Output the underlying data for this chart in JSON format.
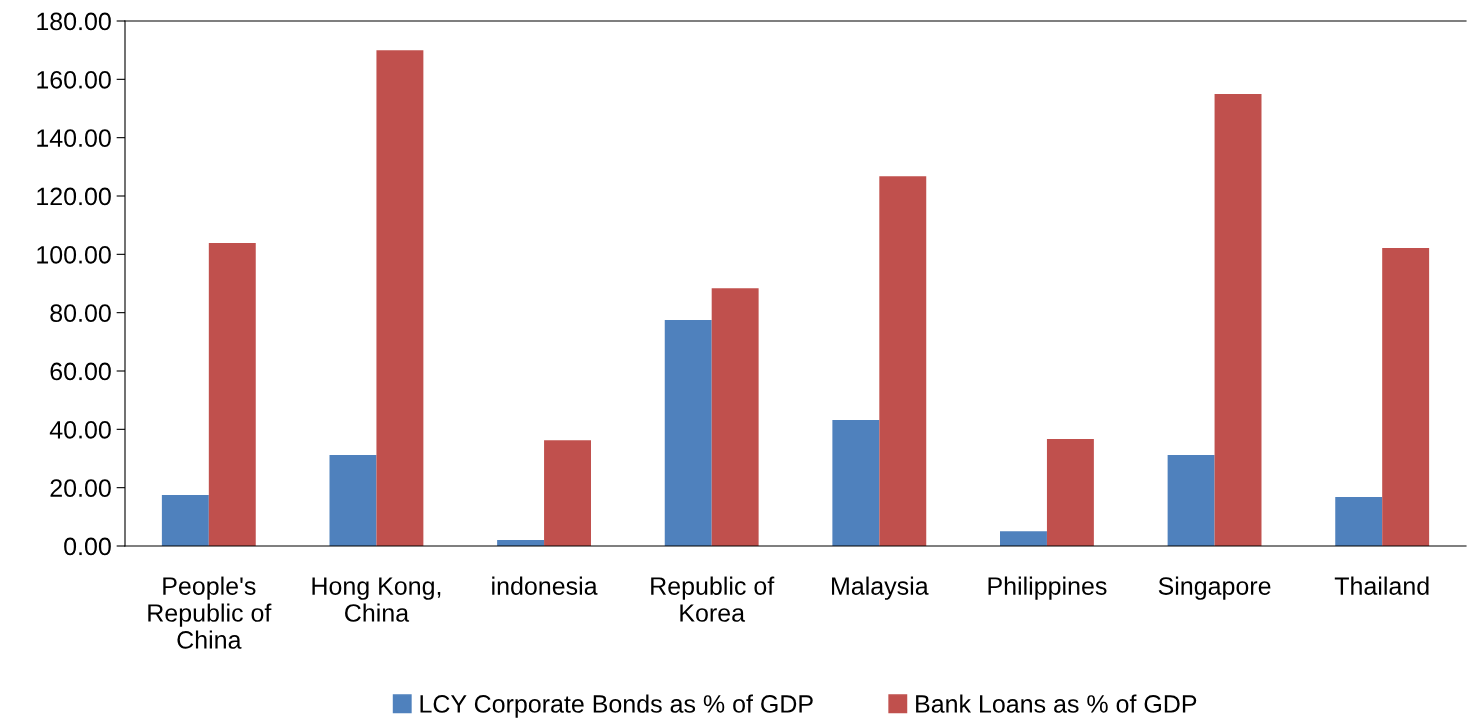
{
  "chart_data": {
    "type": "bar",
    "categories": [
      "People's Republic of China",
      "Hong Kong, China",
      "indonesia",
      "Republic of Korea",
      "Malaysia",
      "Philippines",
      "Singapore",
      "Thailand"
    ],
    "series": [
      {
        "name": "LCY Corporate Bonds as % of GDP",
        "color": "#4f81bd",
        "values": [
          17.5,
          31.2,
          2.1,
          77.5,
          43.2,
          5.1,
          31.2,
          16.8
        ]
      },
      {
        "name": "Bank Loans as % of GDP",
        "color": "#c0504d",
        "values": [
          103.9,
          170,
          36.3,
          88.4,
          126.8,
          36.7,
          155,
          102.2
        ]
      }
    ],
    "ylim": [
      0,
      180
    ],
    "yticks": [
      {
        "value": 0,
        "label": "0.00"
      },
      {
        "value": 20,
        "label": "20.00"
      },
      {
        "value": 40,
        "label": "40.00"
      },
      {
        "value": 60,
        "label": "60.00"
      },
      {
        "value": 80,
        "label": "80.00"
      },
      {
        "value": 100,
        "label": "100.00"
      },
      {
        "value": 120,
        "label": "120.00"
      },
      {
        "value": 140,
        "label": "140.00"
      },
      {
        "value": 160,
        "label": "160.00"
      },
      {
        "value": 180,
        "label": "180.00"
      }
    ],
    "grid": false,
    "legend": "bottom"
  }
}
